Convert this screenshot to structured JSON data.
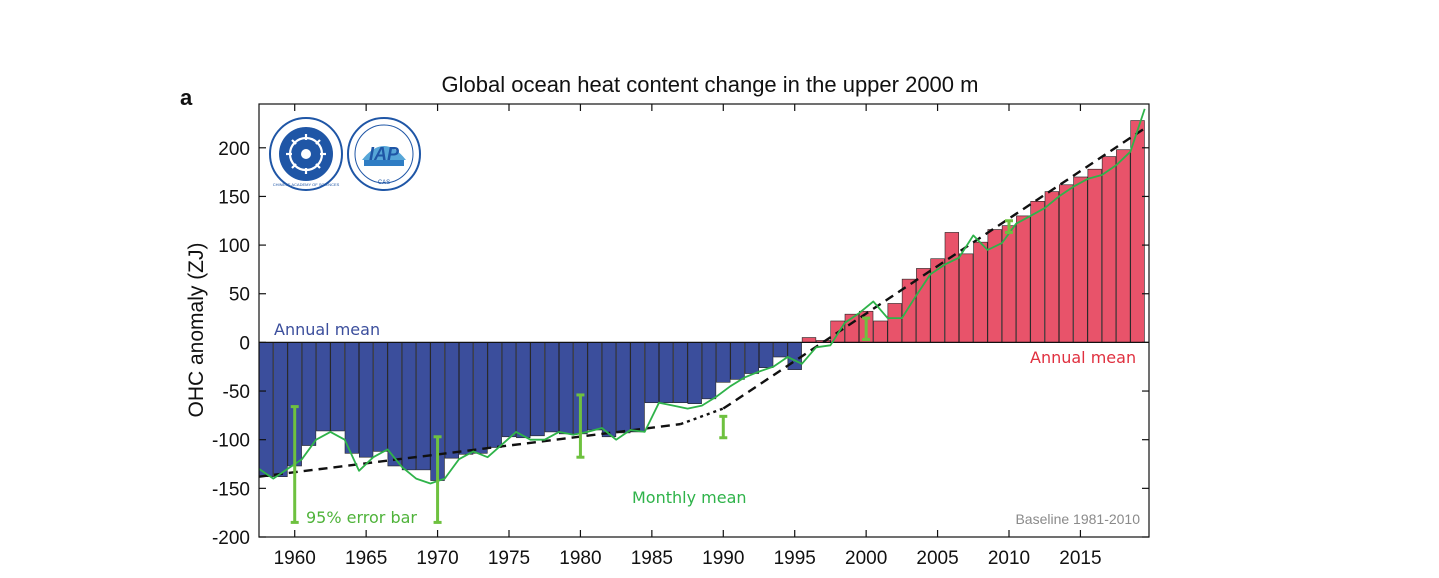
{
  "panel_label": "a",
  "logos": {
    "left": {
      "name": "Chinese Academy of Sciences",
      "text": "CHINESE ACADEMY OF SCIENCES"
    },
    "right": {
      "name": "IAP",
      "text": "IAP",
      "sub": "CAS"
    }
  },
  "chart_data": {
    "type": "bar",
    "title": "Global ocean heat content change in the upper 2000 m",
    "xlabel": "",
    "ylabel": "OHC anomaly (ZJ)",
    "xlim": [
      1957.5,
      2019.8
    ],
    "ylim": [
      -200,
      245
    ],
    "yticks": [
      -200,
      -150,
      -100,
      -50,
      0,
      50,
      100,
      150,
      200
    ],
    "xticks": [
      1960,
      1965,
      1970,
      1975,
      1980,
      1985,
      1990,
      1995,
      2000,
      2005,
      2010,
      2015
    ],
    "grid": false,
    "colors": {
      "negative": "#3b4e9c",
      "positive": "#e8536a",
      "monthly": "#2fb34a",
      "error": "#6ec13f",
      "trend": "#111111",
      "annual_label_neg": "#3b4e9c",
      "annual_label_pos": "#e0303f",
      "monthly_label": "#2fb34a",
      "error_label": "#4fb33a"
    },
    "annual": {
      "x": [
        1958,
        1959,
        1960,
        1961,
        1962,
        1963,
        1964,
        1965,
        1966,
        1967,
        1968,
        1969,
        1970,
        1971,
        1972,
        1973,
        1974,
        1975,
        1976,
        1977,
        1978,
        1979,
        1980,
        1981,
        1982,
        1983,
        1984,
        1985,
        1986,
        1987,
        1988,
        1989,
        1990,
        1991,
        1992,
        1993,
        1994,
        1995,
        1996,
        1997,
        1998,
        1999,
        2000,
        2001,
        2002,
        2003,
        2004,
        2005,
        2006,
        2007,
        2008,
        2009,
        2010,
        2011,
        2012,
        2013,
        2014,
        2015,
        2016,
        2017,
        2018,
        2019
      ],
      "values": [
        -138,
        -138,
        -127,
        -106,
        -91,
        -91,
        -114,
        -118,
        -112,
        -127,
        -131,
        -131,
        -142,
        -119,
        -115,
        -114,
        -108,
        -97,
        -98,
        -96,
        -92,
        -94,
        -94,
        -90,
        -97,
        -93,
        -92,
        -62,
        -62,
        -62,
        -63,
        -58,
        -41,
        -38,
        -32,
        -26,
        -15,
        -28,
        5,
        2,
        22,
        29,
        32,
        22,
        40,
        65,
        76,
        86,
        113,
        91,
        103,
        116,
        120,
        130,
        145,
        155,
        162,
        170,
        178,
        191,
        198,
        228
      ],
      "label_negative": "Annual mean",
      "label_positive": "Annual mean"
    },
    "monthly": {
      "label": "Monthly mean",
      "x": [
        1957.5,
        1958.5,
        1959.5,
        1960.5,
        1961.5,
        1962.5,
        1963.5,
        1964.5,
        1965.5,
        1966.5,
        1967.5,
        1968.5,
        1969.5,
        1970.5,
        1971.5,
        1972.5,
        1973.5,
        1974.5,
        1975.5,
        1976.5,
        1977.5,
        1978.5,
        1979.5,
        1980.5,
        1981.5,
        1982.5,
        1983.5,
        1984.5,
        1985.5,
        1986.5,
        1987.5,
        1988.5,
        1989.5,
        1990.5,
        1991.5,
        1992.5,
        1993.5,
        1994.5,
        1995.5,
        1996.5,
        1997.5,
        1998.5,
        1999.5,
        2000.5,
        2001.5,
        2002.5,
        2003.5,
        2004.5,
        2005.5,
        2006.5,
        2007.5,
        2008.5,
        2009.5,
        2010.5,
        2011.5,
        2012.5,
        2013.5,
        2014.5,
        2015.5,
        2016.5,
        2017.5,
        2018.5,
        2019.5
      ],
      "values": [
        -130,
        -140,
        -130,
        -120,
        -100,
        -92,
        -100,
        -132,
        -118,
        -110,
        -128,
        -140,
        -145,
        -140,
        -120,
        -112,
        -118,
        -105,
        -92,
        -100,
        -100,
        -92,
        -95,
        -92,
        -88,
        -100,
        -90,
        -92,
        -62,
        -65,
        -68,
        -65,
        -56,
        -45,
        -36,
        -30,
        -25,
        -15,
        -22,
        -5,
        -3,
        20,
        30,
        42,
        25,
        25,
        48,
        70,
        80,
        87,
        110,
        95,
        102,
        122,
        130,
        138,
        150,
        160,
        168,
        172,
        182,
        196,
        240
      ]
    },
    "error_bars": {
      "label": "95% error bar",
      "items": [
        {
          "x": 1960,
          "low": -185,
          "high": -66
        },
        {
          "x": 1970,
          "low": -185,
          "high": -97
        },
        {
          "x": 1980,
          "low": -118,
          "high": -54
        },
        {
          "x": 1990,
          "low": -98,
          "high": -76
        },
        {
          "x": 2000,
          "low": 3,
          "high": 25
        },
        {
          "x": 2010,
          "low": 113,
          "high": 125
        }
      ]
    },
    "trends": [
      {
        "name": "trend-1958-1986",
        "from": [
          1957.5,
          -138
        ],
        "to": [
          1987,
          -84
        ],
        "style": "dashed"
      },
      {
        "name": "trend-1987-1990",
        "from": [
          1987,
          -84
        ],
        "to": [
          1990,
          -68
        ],
        "style": "dotted"
      },
      {
        "name": "trend-1990-2019",
        "from": [
          1990,
          -68
        ],
        "to": [
          2019.5,
          220
        ],
        "style": "dashed"
      }
    ],
    "baseline_note": "Baseline 1981-2010"
  }
}
